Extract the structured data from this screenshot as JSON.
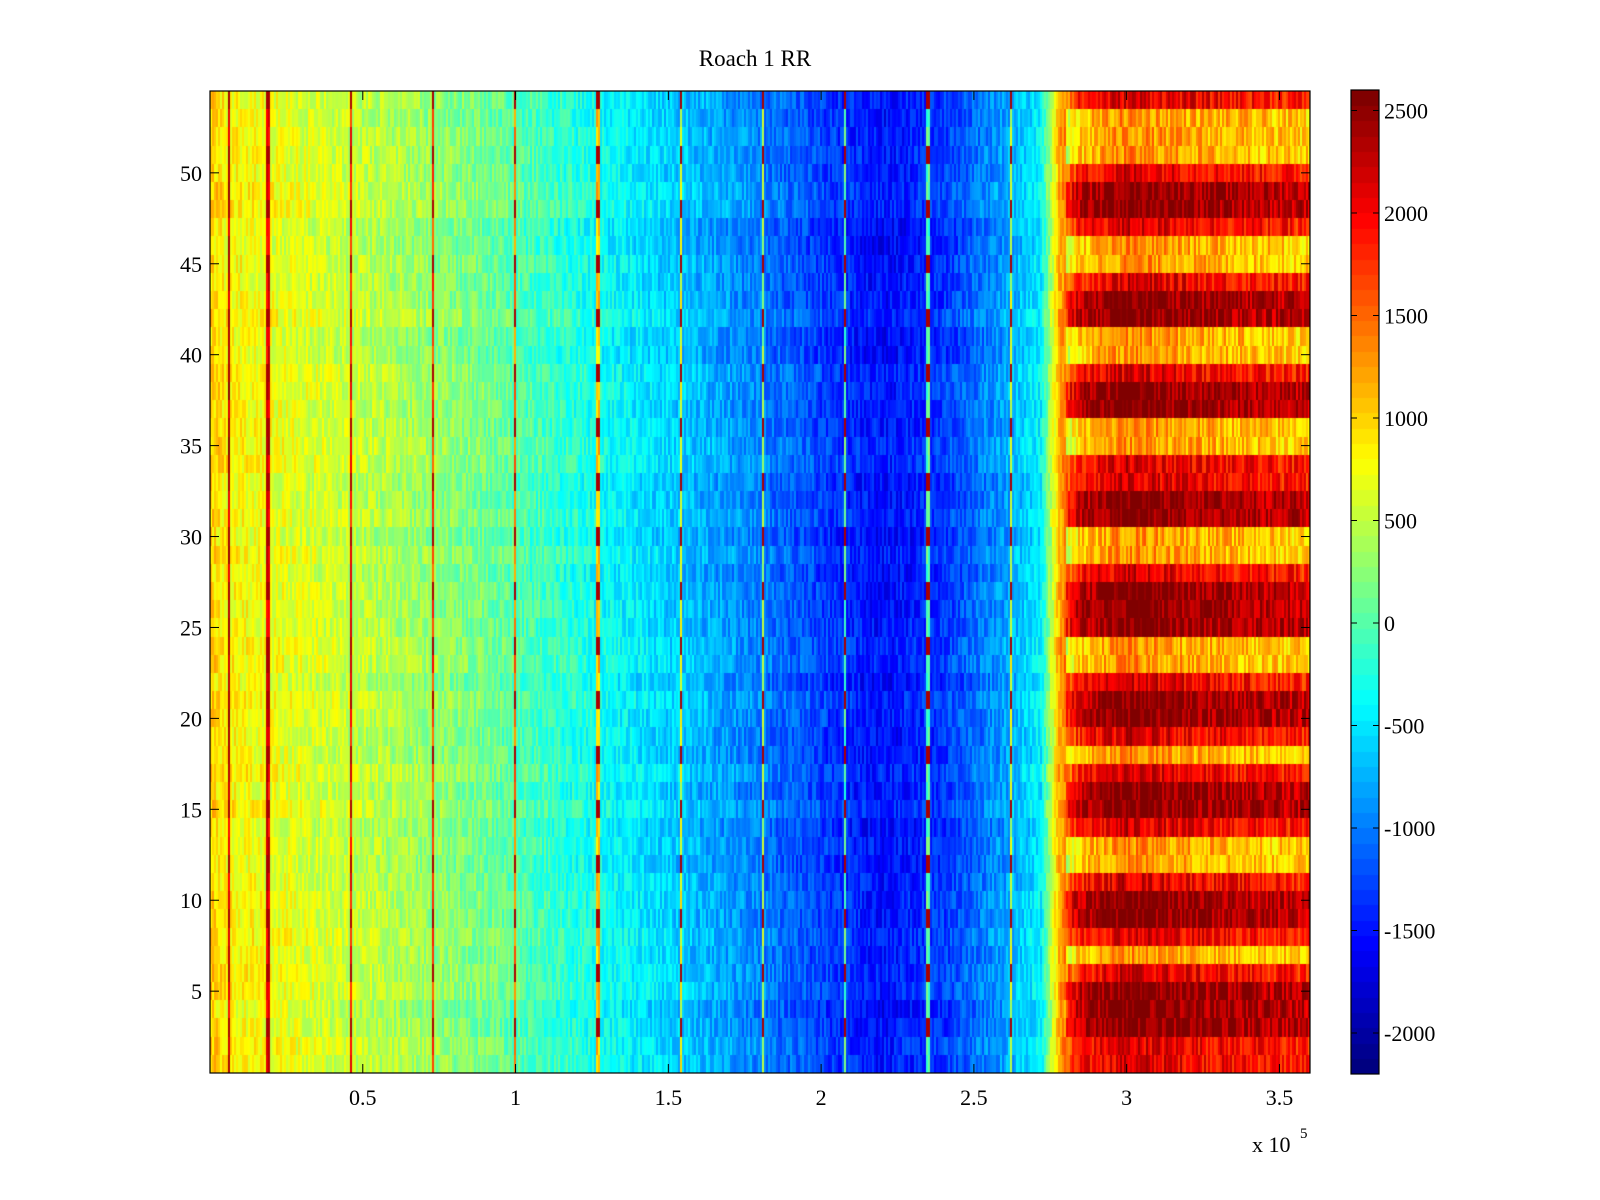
{
  "chart_data": {
    "type": "heatmap",
    "title": "Roach 1 RR",
    "xlabel": "",
    "ylabel": "",
    "x_multiplier_label": {
      "base": "x 10",
      "exponent": "5"
    },
    "xlim": [
      0,
      3.6
    ],
    "ylim": [
      0.5,
      54.5
    ],
    "x_ticks": [
      {
        "value": 0.5,
        "label": "0.5"
      },
      {
        "value": 1.0,
        "label": "1"
      },
      {
        "value": 1.5,
        "label": "1.5"
      },
      {
        "value": 2.0,
        "label": "2"
      },
      {
        "value": 2.5,
        "label": "2.5"
      },
      {
        "value": 3.0,
        "label": "3"
      },
      {
        "value": 3.5,
        "label": "3.5"
      }
    ],
    "y_ticks": [
      {
        "value": 5,
        "label": "5"
      },
      {
        "value": 10,
        "label": "10"
      },
      {
        "value": 15,
        "label": "15"
      },
      {
        "value": 20,
        "label": "20"
      },
      {
        "value": 25,
        "label": "25"
      },
      {
        "value": 30,
        "label": "30"
      },
      {
        "value": 35,
        "label": "35"
      },
      {
        "value": 40,
        "label": "40"
      },
      {
        "value": 45,
        "label": "45"
      },
      {
        "value": 50,
        "label": "50"
      }
    ],
    "colormap": "jet",
    "color_limits": [
      -2200,
      2600
    ],
    "colorbar_ticks": [
      {
        "value": 2500,
        "label": "2500"
      },
      {
        "value": 2000,
        "label": "2000"
      },
      {
        "value": 1500,
        "label": "1500"
      },
      {
        "value": 1000,
        "label": "1000"
      },
      {
        "value": 500,
        "label": "500"
      },
      {
        "value": 0,
        "label": "0"
      },
      {
        "value": -500,
        "label": "-500"
      },
      {
        "value": -1000,
        "label": "-1000"
      },
      {
        "value": -1500,
        "label": "-1500"
      },
      {
        "value": -2000,
        "label": "-2000"
      }
    ],
    "rows": 54,
    "profile_x": [
      0.0,
      0.05,
      0.3,
      0.6,
      0.9,
      1.2,
      1.5,
      1.8,
      2.0,
      2.2,
      2.4,
      2.6,
      2.72,
      2.78,
      2.85,
      3.0,
      3.3,
      3.6
    ],
    "profile_value": [
      1050,
      850,
      650,
      420,
      150,
      -250,
      -600,
      -1000,
      -1300,
      -1550,
      -1350,
      -850,
      -450,
      1200,
      1900,
      2200,
      2000,
      1850
    ],
    "vertical_lines_x": [
      0.06,
      0.19,
      0.46,
      0.73,
      1.0,
      1.27,
      1.54,
      1.81,
      2.08,
      2.35,
      2.62
    ],
    "bright_rows": [
      3,
      4,
      5,
      9,
      10,
      15,
      16,
      20,
      21,
      25,
      26,
      27,
      31,
      32,
      37,
      38,
      42,
      43,
      48,
      49
    ],
    "dim_rows": [
      7,
      12,
      13,
      18,
      23,
      24,
      29,
      30,
      35,
      36,
      40,
      41,
      45,
      46,
      51,
      52,
      53
    ]
  }
}
